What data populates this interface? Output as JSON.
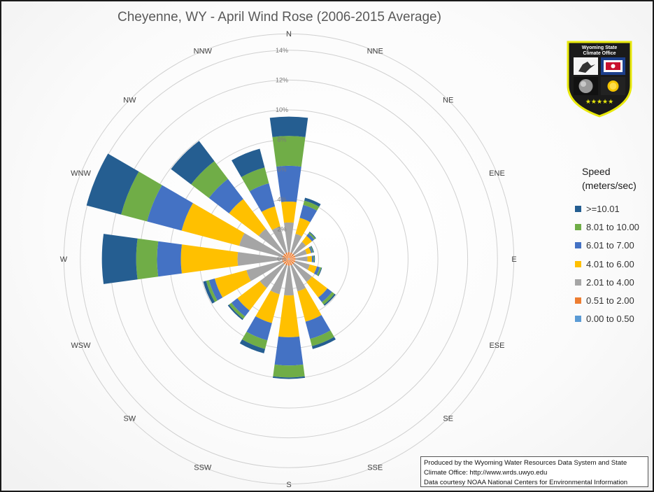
{
  "title": "Cheyenne, WY - April Wind Rose (2006-2015 Average)",
  "chart_data": {
    "type": "wind-rose",
    "title": "Cheyenne, WY - April Wind Rose (2006-2015 Average)",
    "directions": [
      "N",
      "NNE",
      "NE",
      "ENE",
      "E",
      "ESE",
      "SE",
      "SSE",
      "S",
      "SSW",
      "SW",
      "WSW",
      "W",
      "WNW",
      "NW",
      "NNW"
    ],
    "radial_ticks": [
      "0%",
      "2%",
      "4%",
      "6%",
      "8%",
      "10%",
      "12%",
      "14%"
    ],
    "rmax": 14,
    "legend_position": "right",
    "series": [
      {
        "name": "0.00 to 0.50",
        "color": "#5b9bd5",
        "values": [
          0.05,
          0.05,
          0.05,
          0.05,
          0.05,
          0.05,
          0.05,
          0.05,
          0.05,
          0.05,
          0.05,
          0.05,
          0.05,
          0.05,
          0.05,
          0.05
        ]
      },
      {
        "name": "0.51 to 2.00",
        "color": "#ed7d31",
        "values": [
          0.4,
          0.4,
          0.4,
          0.4,
          0.4,
          0.4,
          0.4,
          0.4,
          0.4,
          0.4,
          0.4,
          0.4,
          0.4,
          0.4,
          0.4,
          0.4
        ]
      },
      {
        "name": "2.01 to 4.00",
        "color": "#a5a5a5",
        "values": [
          2.0,
          1.3,
          1.0,
          0.8,
          0.8,
          1.0,
          1.5,
          1.8,
          2.0,
          2.0,
          2.0,
          2.5,
          3.0,
          3.0,
          2.1,
          1.8
        ]
      },
      {
        "name": "4.01 to 6.00",
        "color": "#ffc000",
        "values": [
          1.4,
          1.1,
          0.5,
          0.3,
          0.3,
          0.5,
          1.3,
          2.1,
          2.8,
          2.0,
          1.9,
          2.2,
          3.8,
          4.0,
          2.5,
          1.4
        ]
      },
      {
        "name": "6.01 to 7.00",
        "color": "#4472c4",
        "values": [
          2.4,
          0.9,
          0.2,
          0.1,
          0.1,
          0.2,
          0.4,
          1.2,
          1.9,
          1.2,
          0.5,
          0.4,
          1.6,
          2.4,
          1.7,
          1.6
        ]
      },
      {
        "name": "8.01 to 10.00",
        "color": "#70ad47",
        "values": [
          2.0,
          0.3,
          0.1,
          0.05,
          0.05,
          0.1,
          0.2,
          0.5,
          0.8,
          0.6,
          0.2,
          0.2,
          1.4,
          1.8,
          1.5,
          1.1
        ]
      },
      {
        "name": ">=10.01",
        "color": "#255e91",
        "values": [
          1.3,
          0.2,
          0.05,
          0.05,
          0.05,
          0.05,
          0.1,
          0.2,
          0.1,
          0.3,
          0.1,
          0.2,
          2.3,
          2.4,
          1.7,
          1.3
        ]
      }
    ]
  },
  "legend": {
    "title_line1": "Speed",
    "title_line2": "(meters/sec)",
    "items": [
      {
        "label": ">=10.01",
        "color": "#255e91"
      },
      {
        "label": "8.01 to 10.00",
        "color": "#70ad47"
      },
      {
        "label": "6.01 to 7.00",
        "color": "#4472c4"
      },
      {
        "label": "4.01 to 6.00",
        "color": "#ffc000"
      },
      {
        "label": "2.01 to 4.00",
        "color": "#a5a5a5"
      },
      {
        "label": "0.51 to 2.00",
        "color": "#ed7d31"
      },
      {
        "label": "0.00 to 0.50",
        "color": "#5b9bd5"
      }
    ]
  },
  "logo": {
    "line1": "Wyoming State",
    "line2": "Climate Office"
  },
  "credits": {
    "line1": "Produced by the Wyoming Water Resources Data System and State",
    "line2": "Climate Office: http://www.wrds.uwyo.edu",
    "line3": "Data courtesy NOAA National Centers for Environmental Information"
  }
}
